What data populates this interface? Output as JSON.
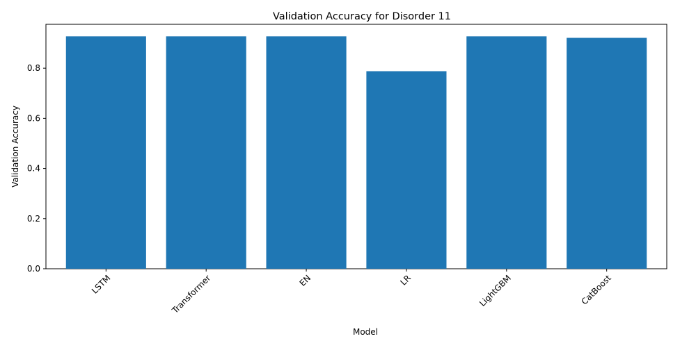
{
  "chart_data": {
    "type": "bar",
    "title": "Validation Accuracy for Disorder 11",
    "xlabel": "Model",
    "ylabel": "Validation Accuracy",
    "categories": [
      "LSTM",
      "Transformer",
      "EN",
      "LR",
      "LightGBM",
      "CatBoost"
    ],
    "values": [
      0.927,
      0.927,
      0.927,
      0.788,
      0.927,
      0.921
    ],
    "ylim": [
      0,
      0.975
    ],
    "yticks": [
      0.0,
      0.2,
      0.4,
      0.6,
      0.8
    ],
    "ytick_labels": [
      "0.0",
      "0.2",
      "0.4",
      "0.6",
      "0.8"
    ],
    "xtick_rotation": 45,
    "grid": false,
    "legend": false,
    "bar_color": "#1f77b4"
  }
}
